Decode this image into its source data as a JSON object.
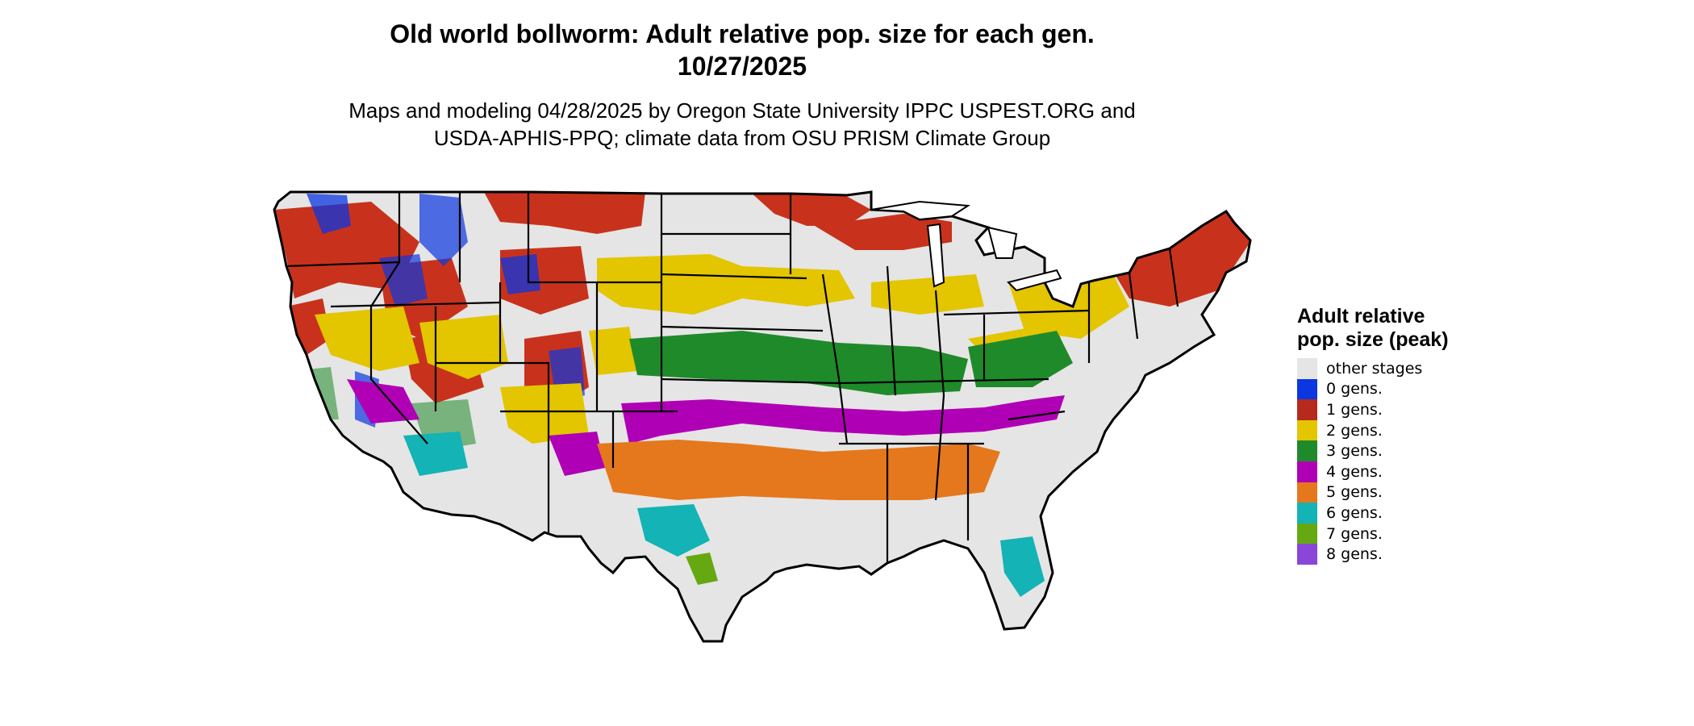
{
  "title": {
    "line1": "Old world bollworm: Adult relative pop. size for each gen.",
    "line2": "10/27/2025"
  },
  "subtitle": {
    "line1": "Maps and modeling 04/28/2025 by Oregon State University IPPC USPEST.ORG and",
    "line2": "USDA-APHIS-PPQ; climate data from OSU PRISM Climate Group"
  },
  "map": {
    "other_stages_color": "#e5e5e5",
    "outline_color": "#000000"
  },
  "legend": {
    "title": "Adult relative pop. size (peak)",
    "items": [
      {
        "label": "other stages",
        "color": "#e5e5e5"
      },
      {
        "label": "0 gens.",
        "color": "#0b36e0"
      },
      {
        "label": "1 gens.",
        "color": "#b52a1c"
      },
      {
        "label": "2 gens.",
        "color": "#e3c500"
      },
      {
        "label": "3 gens.",
        "color": "#1f8a2a"
      },
      {
        "label": "4 gens.",
        "color": "#b000b5"
      },
      {
        "label": "5 gens.",
        "color": "#e5781c"
      },
      {
        "label": "6 gens.",
        "color": "#14b3b5"
      },
      {
        "label": "7 gens.",
        "color": "#66a812"
      },
      {
        "label": "8 gens.",
        "color": "#8a45d9"
      }
    ]
  }
}
